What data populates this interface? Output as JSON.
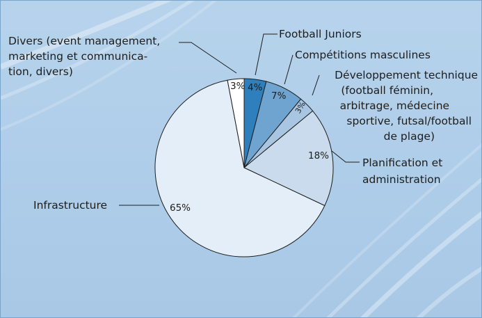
{
  "chart_data": {
    "type": "pie",
    "start_angle_deg": 0,
    "direction": "clockwise",
    "slices": [
      {
        "label": "Football Juniors",
        "value": 4,
        "value_label": "4%",
        "color": "#2f7fbd"
      },
      {
        "label": "Compétitions masculines",
        "value": 7,
        "value_label": "7%",
        "color": "#6fa4d0"
      },
      {
        "label": "Développement technique (football féminin, arbitrage, médecine sportive, futsal/football de plage)",
        "value": 3,
        "value_label": "3%",
        "color": "#a8c6e2"
      },
      {
        "label": "Planification et administration",
        "value": 18,
        "value_label": "18%",
        "color": "#c9dbed"
      },
      {
        "label": "Infrastructure",
        "value": 65,
        "value_label": "65%",
        "color": "#e3eef8"
      },
      {
        "label": "Divers (event management, marketing et communication, divers)",
        "value": 3,
        "value_label": "3%",
        "color": "#ffffff"
      }
    ],
    "label_text": {
      "football_juniors": "Football Juniors",
      "competitions": "Compétitions masculines",
      "dev_lines": [
        "Développement technique",
        "(football féminin,",
        "arbitrage, médecine",
        "sportive, futsal/football",
        "de plage)"
      ],
      "planif_lines": [
        "Planification et",
        "administration"
      ],
      "infrastructure": "Infrastructure",
      "divers_lines": [
        "Divers (event management,",
        "marketing et communica-",
        "tion, divers)"
      ]
    }
  }
}
